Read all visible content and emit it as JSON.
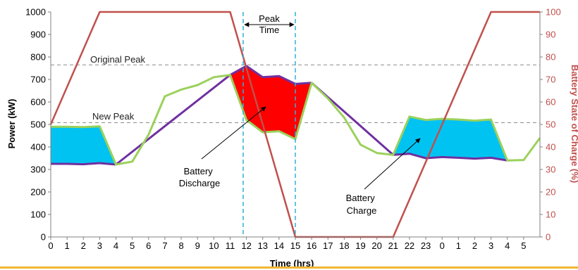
{
  "colors": {
    "soc_line": "#c0504d",
    "load_line": "#9bd15c",
    "battery_line": "#7030a0",
    "discharge_fill": "#ff0000",
    "charge_fill": "#00c3f2",
    "peak_marker": "#31b0d5",
    "reference_line": "#8c8c8c",
    "axis": "#808080",
    "left_text": "#000000",
    "right_text": "#c0504d",
    "bottom_rule": "#f2b632"
  },
  "chart_data": {
    "type": "line",
    "xlabel": "Time (hrs)",
    "ylabel": "Power (kW)",
    "y2label": "Battery State of Charge (%)",
    "categories": [
      "0",
      "1",
      "2",
      "3",
      "4",
      "5",
      "6",
      "7",
      "8",
      "9",
      "10",
      "11",
      "12",
      "13",
      "14",
      "15",
      "16",
      "17",
      "18",
      "19",
      "20",
      "21",
      "22",
      "23",
      "0",
      "1",
      "2",
      "3",
      "4",
      "5"
    ],
    "ylim": [
      0,
      1000
    ],
    "y_ticks": [
      0,
      100,
      200,
      300,
      400,
      500,
      600,
      700,
      800,
      900,
      1000
    ],
    "y2lim": [
      0,
      100
    ],
    "y2_ticks": [
      0,
      10,
      20,
      30,
      40,
      50,
      60,
      70,
      80,
      90,
      100
    ],
    "x_extent": [
      0,
      30
    ],
    "reference_lines": [
      {
        "label": "Original Peak",
        "value": 765
      },
      {
        "label": "New Peak",
        "value": 508
      }
    ],
    "peak_window": {
      "label": "Peak Time",
      "start": 11.8,
      "end": 15
    }
  },
  "series": {
    "soc": {
      "axis": "y2",
      "points": [
        [
          0,
          50
        ],
        [
          3,
          100
        ],
        [
          11,
          100
        ],
        [
          15,
          0
        ],
        [
          21,
          0
        ],
        [
          27,
          100
        ],
        [
          30,
          100
        ]
      ]
    },
    "load": {
      "axis": "y1",
      "points": [
        [
          0,
          490
        ],
        [
          1,
          490
        ],
        [
          2,
          488
        ],
        [
          3,
          492
        ],
        [
          4,
          322
        ],
        [
          5,
          335
        ],
        [
          6,
          455
        ],
        [
          7,
          625
        ],
        [
          8,
          655
        ],
        [
          9,
          675
        ],
        [
          10,
          710
        ],
        [
          11,
          720
        ],
        [
          12,
          520
        ],
        [
          13,
          465
        ],
        [
          14,
          470
        ],
        [
          15,
          435
        ],
        [
          16,
          685
        ],
        [
          17,
          615
        ],
        [
          18,
          530
        ],
        [
          19,
          410
        ],
        [
          20,
          373
        ],
        [
          21,
          365
        ],
        [
          22,
          535
        ],
        [
          23,
          520
        ],
        [
          24,
          525
        ],
        [
          25,
          522
        ],
        [
          26,
          517
        ],
        [
          27,
          522
        ],
        [
          28,
          340
        ],
        [
          29,
          342
        ],
        [
          30,
          440
        ]
      ]
    },
    "battery_load": {
      "axis": "y1",
      "points": [
        [
          0,
          325
        ],
        [
          1,
          325
        ],
        [
          2,
          323
        ],
        [
          3,
          328
        ],
        [
          4,
          322
        ],
        [
          11,
          720
        ],
        [
          12,
          760
        ],
        [
          13,
          710
        ],
        [
          14,
          715
        ],
        [
          15,
          680
        ],
        [
          16,
          685
        ],
        [
          21,
          365
        ],
        [
          22,
          370
        ],
        [
          23,
          350
        ],
        [
          24,
          355
        ],
        [
          25,
          352
        ],
        [
          26,
          348
        ],
        [
          27,
          352
        ],
        [
          28,
          340
        ]
      ]
    },
    "discharge_area": {
      "axis": "y1",
      "upper": [
        [
          11,
          720
        ],
        [
          12,
          760
        ],
        [
          13,
          710
        ],
        [
          14,
          715
        ],
        [
          15,
          680
        ],
        [
          16,
          685
        ]
      ],
      "lower": [
        [
          11,
          720
        ],
        [
          12,
          520
        ],
        [
          13,
          465
        ],
        [
          14,
          470
        ],
        [
          15,
          435
        ],
        [
          16,
          685
        ]
      ]
    },
    "charge_area_1": {
      "axis": "y1",
      "upper": [
        [
          0,
          490
        ],
        [
          1,
          490
        ],
        [
          2,
          488
        ],
        [
          3,
          492
        ],
        [
          4,
          322
        ]
      ],
      "lower": [
        [
          0,
          325
        ],
        [
          1,
          325
        ],
        [
          2,
          323
        ],
        [
          3,
          328
        ],
        [
          4,
          322
        ]
      ]
    },
    "charge_area_2": {
      "axis": "y1",
      "upper": [
        [
          21,
          365
        ],
        [
          22,
          535
        ],
        [
          23,
          520
        ],
        [
          24,
          525
        ],
        [
          25,
          522
        ],
        [
          26,
          517
        ],
        [
          27,
          522
        ],
        [
          28,
          340
        ]
      ],
      "lower": [
        [
          21,
          365
        ],
        [
          22,
          370
        ],
        [
          23,
          350
        ],
        [
          24,
          355
        ],
        [
          25,
          352
        ],
        [
          26,
          348
        ],
        [
          27,
          352
        ],
        [
          28,
          340
        ]
      ]
    }
  },
  "annotations": {
    "discharge": {
      "label_lines": [
        "Battery",
        "Discharge"
      ]
    },
    "charge": {
      "label_lines": [
        "Battery",
        "Charge"
      ]
    }
  }
}
